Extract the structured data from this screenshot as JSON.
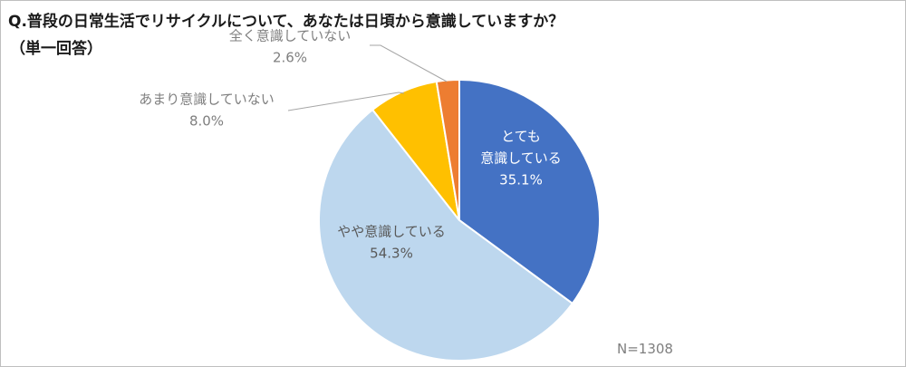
{
  "title": "Q.普段の日常生活でリサイクルについて、あなたは日頃から意識していますか？",
  "subtitle": "（単一回答）",
  "note": "N=1308",
  "chart_data": {
    "type": "pie",
    "title": "Q.普段の日常生活でリサイクルについて、あなたは日頃から意識していますか？",
    "subtitle": "（単一回答）",
    "annotation": "N=1308",
    "slices": [
      {
        "label_lines": [
          "とても",
          "意識している"
        ],
        "value": 35.1,
        "value_label": "35.1%",
        "color": "#4472c4"
      },
      {
        "label_lines": [
          "やや意識している"
        ],
        "value": 54.3,
        "value_label": "54.3%",
        "color": "#bdd7ee"
      },
      {
        "label_lines": [
          "あまり意識していない"
        ],
        "value": 8.0,
        "value_label": "8.0%",
        "color": "#ffc000"
      },
      {
        "label_lines": [
          "全く意識していない"
        ],
        "value": 2.6,
        "value_label": "2.6%",
        "color": "#ed7d31"
      }
    ]
  }
}
